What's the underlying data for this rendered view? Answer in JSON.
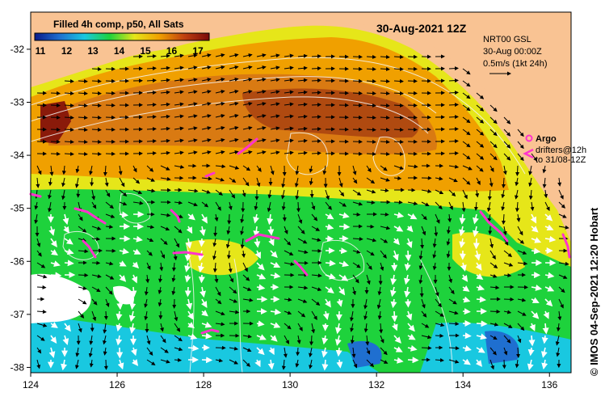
{
  "map": {
    "title": "30-Aug-2021 12Z",
    "colorbar_title": "Filled 4h comp, p50, All Sats",
    "colorbar_ticks": [
      "11",
      "12",
      "13",
      "14",
      "15",
      "16",
      "17"
    ],
    "colorbar_stops": [
      "#0a1a8a",
      "#1f6fd0",
      "#19c8e0",
      "#1ed23c",
      "#e6e619",
      "#f0a000",
      "#c04010",
      "#7a0a0a"
    ],
    "product": "NRT00 GSL",
    "valid_time": "30-Aug 00:00Z",
    "scale_label": "0.5m/s (1kt 24h)",
    "legend_argo": "Argo",
    "legend_drifters_line1": "drifters@12h",
    "legend_drifters_line2": "to 31/08-12Z",
    "credit": "© IMOS 04-Sep-2021 12:20 Hobart",
    "land_color": "#f9c393",
    "lon_ticks": [
      "124",
      "126",
      "128",
      "130",
      "132",
      "134",
      "136"
    ],
    "lat_ticks": [
      "-32",
      "-33",
      "-34",
      "-35",
      "-36",
      "-37",
      "-38"
    ],
    "extent": {
      "lon_min": 124,
      "lon_max": 136.5,
      "lat_min": -38.1,
      "lat_max": -31.3
    }
  }
}
